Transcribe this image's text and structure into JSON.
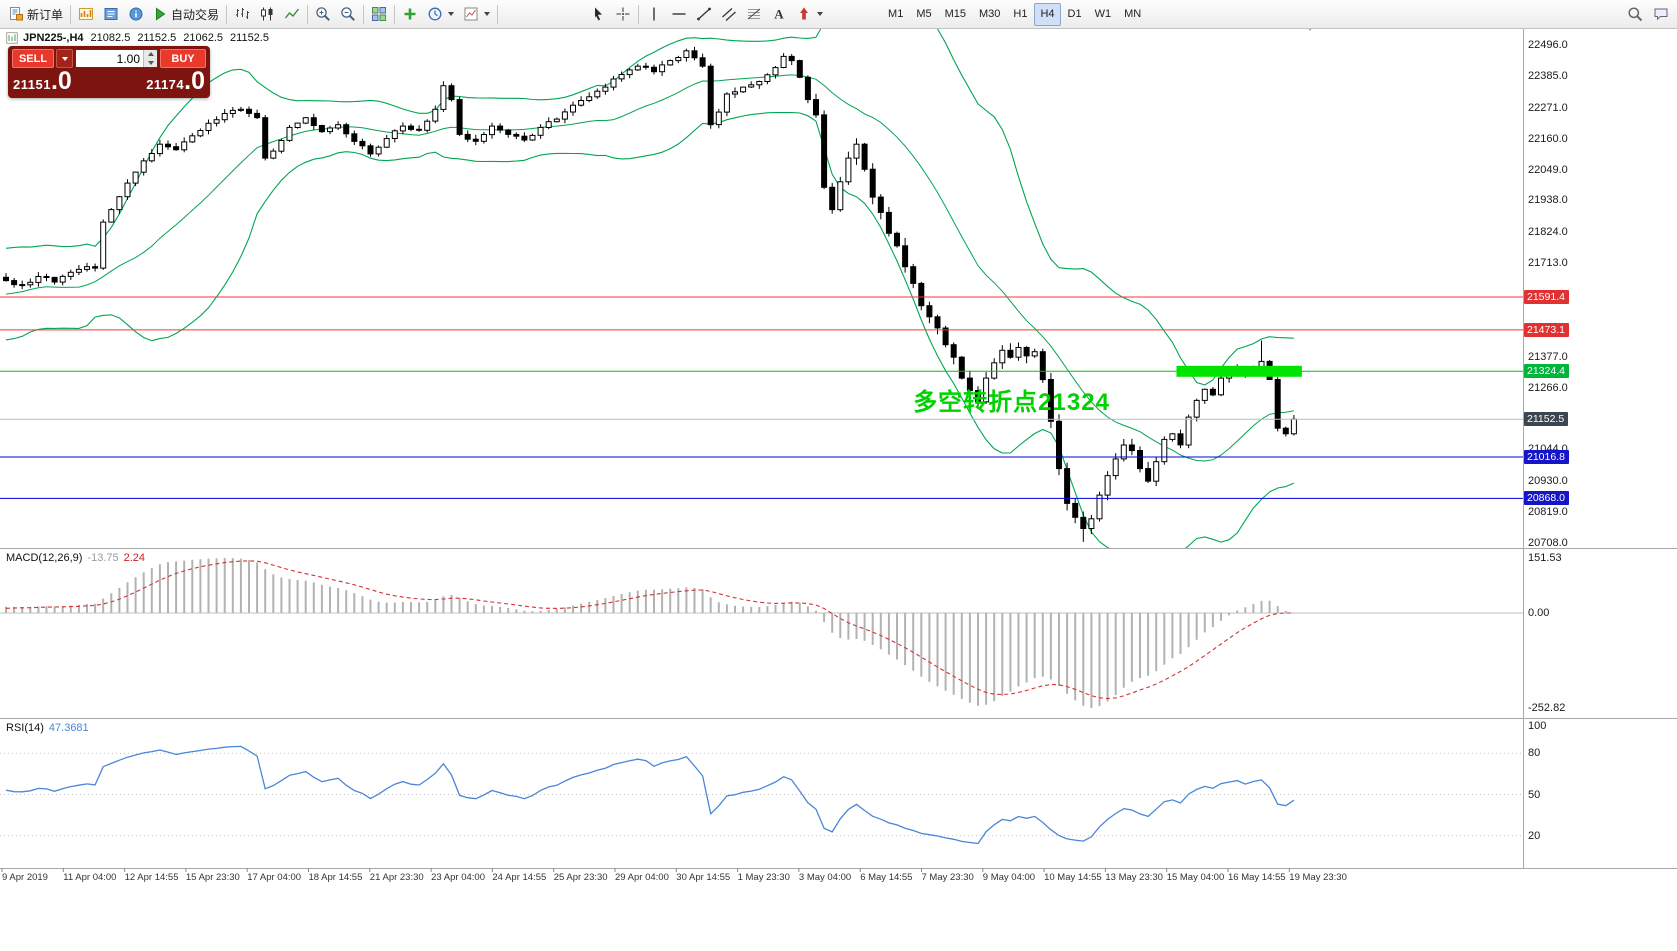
{
  "toolbar": {
    "new_order": {
      "label": "新订单"
    },
    "autotrading": {
      "label": "自动交易"
    },
    "icons_left": [
      "new-chart",
      "profiles",
      "data-window"
    ],
    "chart_types": [
      "bar-chart",
      "candlestick-chart",
      "line-chart"
    ],
    "zoom": [
      "zoom-in",
      "zoom-out"
    ],
    "windows": [
      "tile-windows"
    ],
    "chart_tools": [
      "indicators",
      "periods",
      "templates"
    ],
    "pointer_tools": [
      "cursor",
      "crosshair"
    ],
    "draw_tools": [
      "vertical-line",
      "horizontal-line",
      "trend-line",
      "equidistant-channel",
      "fibonacci",
      "text",
      "arrows"
    ],
    "timeframes": [
      {
        "label": "M1"
      },
      {
        "label": "M5"
      },
      {
        "label": "M15"
      },
      {
        "label": "M30"
      },
      {
        "label": "H1"
      },
      {
        "label": "H4",
        "active": true
      },
      {
        "label": "D1"
      },
      {
        "label": "W1"
      },
      {
        "label": "MN"
      }
    ],
    "right_icons": [
      "search",
      "community"
    ]
  },
  "chart_header": {
    "symbol_period": "JPN225-,H4",
    "open": "21082.5",
    "high": "21152.5",
    "low": "21062.5",
    "close": "21152.5"
  },
  "trade_panel": {
    "sell_label": "SELL",
    "buy_label": "BUY",
    "volume": "1.00",
    "sell_price_int": "21151",
    "sell_price_dec": ".0",
    "buy_price_int": "21174",
    "buy_price_dec": ".0"
  },
  "annotation": {
    "text": "多空转折点21324",
    "color": "#00d200"
  },
  "chart_data": {
    "type": "candlestick",
    "symbol": "JPN225-",
    "timeframe": "H4",
    "ohlc_current": {
      "open": 21082.5,
      "high": 21152.5,
      "low": 21062.5,
      "close": 21152.5
    },
    "ylim": [
      20708.0,
      22496.0
    ],
    "price_ticks": [
      22496.0,
      22385.0,
      22271.0,
      22160.0,
      22049.0,
      21938.0,
      21824.0,
      21713.0,
      21377.0,
      21266.0,
      21044.0,
      20930.0,
      20819.0,
      20708.0
    ],
    "hlines": [
      {
        "value": 21591.4,
        "color": "#ff3232",
        "tag_bg": "#e03232"
      },
      {
        "value": 21473.1,
        "color": "#ff3232",
        "tag_bg": "#e03232"
      },
      {
        "value": 21324.4,
        "color": "#00c800",
        "tag_bg": "#00b43c"
      },
      {
        "value": 21152.5,
        "color": "#b8bcc6",
        "tag_bg": "#3c4650",
        "is_bid": true
      },
      {
        "value": 21016.8,
        "color": "#0000dc",
        "tag_bg": "#1414c8"
      },
      {
        "value": 20868.0,
        "color": "#0000dc",
        "tag_bg": "#1414c8"
      }
    ],
    "highlight_rect": {
      "from_index": 145,
      "to_index": 159,
      "value": 21324.4,
      "color": "#00e400"
    },
    "annotation": {
      "index": 112,
      "price": 21285
    },
    "candle_colors": {
      "up_body": "#ffffff",
      "down_body": "#000000",
      "wick": "#000000"
    },
    "bollinger": {
      "period": 20,
      "deviation": 2,
      "color": "#00A651"
    },
    "candles": {
      "count": 160,
      "seed": 7,
      "anchors": [
        [
          0,
          21650
        ],
        [
          2,
          21635
        ],
        [
          4,
          21665
        ],
        [
          6,
          21645
        ],
        [
          8,
          21680
        ],
        [
          10,
          21700
        ],
        [
          11,
          21695
        ],
        [
          12,
          21860
        ],
        [
          13,
          21905
        ],
        [
          15,
          22000
        ],
        [
          17,
          22080
        ],
        [
          19,
          22140
        ],
        [
          21,
          22120
        ],
        [
          23,
          22170
        ],
        [
          25,
          22215
        ],
        [
          27,
          22250
        ],
        [
          29,
          22265
        ],
        [
          31,
          22235
        ],
        [
          32,
          22090
        ],
        [
          33,
          22115
        ],
        [
          35,
          22200
        ],
        [
          37,
          22235
        ],
        [
          39,
          22185
        ],
        [
          41,
          22210
        ],
        [
          43,
          22150
        ],
        [
          45,
          22105
        ],
        [
          47,
          22160
        ],
        [
          49,
          22205
        ],
        [
          51,
          22190
        ],
        [
          53,
          22265
        ],
        [
          54,
          22350
        ],
        [
          55,
          22300
        ],
        [
          56,
          22175
        ],
        [
          58,
          22150
        ],
        [
          60,
          22205
        ],
        [
          62,
          22175
        ],
        [
          64,
          22155
        ],
        [
          66,
          22200
        ],
        [
          68,
          22230
        ],
        [
          70,
          22280
        ],
        [
          72,
          22310
        ],
        [
          74,
          22345
        ],
        [
          76,
          22390
        ],
        [
          78,
          22420
        ],
        [
          80,
          22400
        ],
        [
          82,
          22440
        ],
        [
          84,
          22475
        ],
        [
          85,
          22450
        ],
        [
          86,
          22420
        ],
        [
          87,
          22210
        ],
        [
          88,
          22255
        ],
        [
          89,
          22320
        ],
        [
          91,
          22345
        ],
        [
          93,
          22365
        ],
        [
          95,
          22415
        ],
        [
          96,
          22455
        ],
        [
          97,
          22440
        ],
        [
          98,
          22380
        ],
        [
          99,
          22300
        ],
        [
          100,
          22245
        ],
        [
          101,
          21985
        ],
        [
          102,
          21905
        ],
        [
          103,
          22005
        ],
        [
          104,
          22090
        ],
        [
          105,
          22140
        ],
        [
          106,
          22050
        ],
        [
          107,
          21950
        ],
        [
          108,
          21895
        ],
        [
          109,
          21820
        ],
        [
          110,
          21775
        ],
        [
          111,
          21700
        ],
        [
          112,
          21640
        ],
        [
          113,
          21560
        ],
        [
          114,
          21520
        ],
        [
          115,
          21480
        ],
        [
          116,
          21420
        ],
        [
          117,
          21375
        ],
        [
          118,
          21300
        ],
        [
          119,
          21255
        ],
        [
          120,
          21215
        ],
        [
          121,
          21300
        ],
        [
          122,
          21355
        ],
        [
          123,
          21400
        ],
        [
          124,
          21375
        ],
        [
          125,
          21410
        ],
        [
          126,
          21380
        ],
        [
          127,
          21395
        ],
        [
          128,
          21295
        ],
        [
          129,
          21145
        ],
        [
          130,
          20975
        ],
        [
          131,
          20850
        ],
        [
          132,
          20800
        ],
        [
          133,
          20760
        ],
        [
          134,
          20795
        ],
        [
          135,
          20880
        ],
        [
          136,
          20950
        ],
        [
          137,
          21010
        ],
        [
          138,
          21060
        ],
        [
          139,
          21040
        ],
        [
          140,
          20975
        ],
        [
          141,
          20930
        ],
        [
          142,
          21000
        ],
        [
          143,
          21080
        ],
        [
          144,
          21100
        ],
        [
          145,
          21060
        ],
        [
          146,
          21160
        ],
        [
          147,
          21220
        ],
        [
          148,
          21260
        ],
        [
          149,
          21240
        ],
        [
          150,
          21300
        ],
        [
          151,
          21320
        ],
        [
          152,
          21340
        ],
        [
          153,
          21310
        ],
        [
          154,
          21340
        ],
        [
          155,
          21360
        ],
        [
          156,
          21295
        ],
        [
          157,
          21120
        ],
        [
          158,
          21100
        ],
        [
          159,
          21152.5
        ]
      ],
      "wick_overrides": [
        {
          "index": 155,
          "high": 21435
        },
        {
          "index": 133,
          "low": 20712
        }
      ]
    },
    "time_labels": [
      "9 Apr 2019",
      "11 Apr 04:00",
      "12 Apr 14:55",
      "15 Apr 23:30",
      "17 Apr 04:00",
      "18 Apr 14:55",
      "21 Apr 23:30",
      "23 Apr 04:00",
      "24 Apr 14:55",
      "25 Apr 23:30",
      "29 Apr 04:00",
      "30 Apr 14:55",
      "1 May 23:30",
      "3 May 04:00",
      "6 May 14:55",
      "7 May 23:30",
      "9 May 04:00",
      "10 May 14:55",
      "13 May 23:30",
      "15 May 04:00",
      "16 May 14:55",
      "19 May 23:30"
    ],
    "indicators": [
      {
        "type": "MACD",
        "params": [
          12,
          26,
          9
        ],
        "label": "MACD(12,26,9)",
        "value_main": "-13.75",
        "value_signal": "2.24",
        "axis_labels": [
          "151.53",
          "0.00",
          "-252.82"
        ],
        "range": [
          -252.82,
          151.53
        ],
        "histogram_color": "#b2b2b2",
        "signal_color": "#d23333"
      },
      {
        "type": "RSI",
        "params": [
          14
        ],
        "label": "RSI(14)",
        "value": "47.3681",
        "axis_labels": [
          "100",
          "80",
          "50",
          "20"
        ],
        "levels": [
          80,
          50,
          20
        ],
        "range": [
          0,
          100
        ],
        "line_color": "#4a86d8"
      }
    ]
  }
}
